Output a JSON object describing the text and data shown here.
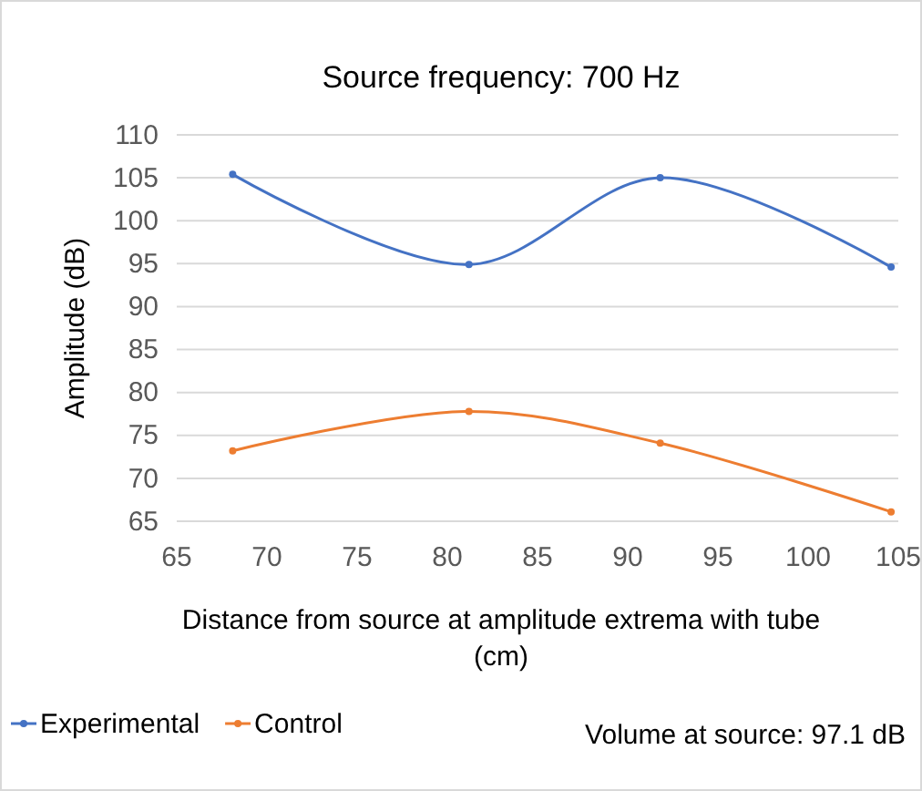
{
  "chart_data": {
    "type": "line",
    "title": "Source frequency: 700 Hz",
    "xlabel": "Distance from source at amplitude extrema with tube (cm)",
    "ylabel": "Amplitude  (dB)",
    "series": [
      {
        "name": "Experimental",
        "color": "#4472c4",
        "x": [
          68.1,
          81.2,
          91.8,
          104.6
        ],
        "values": [
          105.4,
          94.9,
          105.0,
          94.6
        ]
      },
      {
        "name": "Control",
        "color": "#ed7d31",
        "x": [
          68.1,
          81.2,
          91.8,
          104.6
        ],
        "values": [
          73.2,
          77.8,
          74.1,
          66.1
        ]
      }
    ],
    "xlim": [
      65,
      105
    ],
    "xticks": [
      65,
      70,
      75,
      80,
      85,
      90,
      95,
      100,
      105
    ],
    "ylim": [
      65,
      110
    ],
    "yticks": [
      65,
      70,
      75,
      80,
      85,
      90,
      95,
      100,
      105,
      110
    ],
    "grid": "y",
    "legend": "bottom left",
    "marker": "circle",
    "line_style": "solid",
    "annotations": [
      "Volume at source: 97.1 dB"
    ]
  }
}
